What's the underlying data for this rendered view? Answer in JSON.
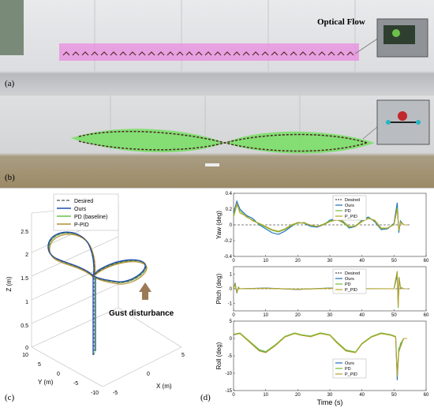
{
  "panels": {
    "a_label": "(a)",
    "b_label": "(b)",
    "c_label": "(c)",
    "d_label": "(d)",
    "optical_flow_label": "Optical Flow"
  },
  "colors": {
    "desired": "#555555",
    "ours": "#1f4eb4",
    "pd": "#6cc04a",
    "ppid": "#b58e35",
    "ours_d": "#1a6fbf",
    "pd_d": "#6dbd3b",
    "ppid_d": "#b8a12a",
    "magenta_band": "#e98be0",
    "green_band": "#6fe05a"
  },
  "plot3d": {
    "legend": [
      "Desired",
      "Ours",
      "PD (baseline)",
      "P-PID"
    ],
    "zlabel": "Z (m)",
    "ylabel": "Y (m)",
    "xlabel": "X (m)",
    "z_ticks": [
      "0",
      "0.5",
      "1",
      "1.5",
      "2",
      "2.5"
    ],
    "y_ticks": [
      "10",
      "5",
      "0",
      "-5",
      "-10"
    ],
    "x_ticks": [
      "5",
      "0",
      "-5"
    ],
    "gust_label": "Gust disturbance"
  },
  "chart_data": [
    {
      "type": "line",
      "ylabel": "Yaw (deg)",
      "xlim": [
        0,
        60
      ],
      "ylim": [
        -0.4,
        0.4
      ],
      "x_ticks": [
        "0",
        "10",
        "20",
        "30",
        "40",
        "50",
        "60"
      ],
      "y_ticks": [
        "0.4",
        "0.2",
        "0",
        "-0.2",
        "-0.4"
      ],
      "legend": [
        "Desired",
        "Ours",
        "PD",
        "P_PID"
      ],
      "series": [
        {
          "name": "Desired",
          "x": [
            0,
            55
          ],
          "y": [
            0,
            0
          ]
        },
        {
          "name": "Ours",
          "x": [
            0,
            1,
            2,
            4,
            6,
            8,
            10,
            12,
            14,
            16,
            18,
            20,
            22,
            24,
            26,
            28,
            30,
            32,
            34,
            36,
            38,
            40,
            42,
            44,
            46,
            48,
            50,
            51,
            51.5,
            52,
            53,
            54
          ],
          "y": [
            0.15,
            0.3,
            0.2,
            0.12,
            0.08,
            0.0,
            -0.05,
            -0.1,
            -0.12,
            -0.08,
            -0.02,
            0.03,
            0.02,
            -0.02,
            -0.03,
            0.0,
            0.06,
            0.08,
            0.04,
            -0.04,
            -0.02,
            0.06,
            0.1,
            0.04,
            -0.06,
            -0.05,
            0.02,
            0.28,
            -0.1,
            0.05,
            0.0,
            0.0
          ]
        },
        {
          "name": "PD",
          "x": [
            0,
            1,
            2,
            4,
            6,
            8,
            10,
            12,
            14,
            16,
            18,
            20,
            22,
            24,
            26,
            28,
            30,
            32,
            34,
            36,
            38,
            40,
            42,
            44,
            46,
            48,
            50,
            51,
            51.5,
            52,
            53,
            54
          ],
          "y": [
            0.1,
            0.25,
            0.18,
            0.1,
            0.06,
            0.01,
            -0.03,
            -0.07,
            -0.09,
            -0.06,
            -0.01,
            0.02,
            0.03,
            -0.01,
            -0.02,
            0.01,
            0.05,
            0.07,
            0.03,
            -0.03,
            -0.01,
            0.05,
            0.09,
            0.05,
            -0.05,
            -0.04,
            0.01,
            0.22,
            -0.08,
            0.04,
            0.0,
            0.0
          ]
        },
        {
          "name": "P_PID",
          "x": [
            0,
            1,
            2,
            4,
            6,
            8,
            10,
            12,
            14,
            16,
            18,
            20,
            22,
            24,
            26,
            28,
            30,
            32,
            34,
            36,
            38,
            40,
            42,
            44,
            46,
            48,
            50,
            51,
            51.5,
            52,
            53,
            54
          ],
          "y": [
            0.12,
            0.27,
            0.15,
            0.11,
            0.05,
            0.02,
            -0.02,
            -0.06,
            -0.08,
            -0.05,
            0.0,
            0.03,
            0.02,
            0.0,
            -0.02,
            0.0,
            0.04,
            0.06,
            0.05,
            -0.02,
            -0.02,
            0.04,
            0.08,
            0.06,
            -0.04,
            -0.04,
            0.0,
            0.2,
            -0.06,
            0.03,
            0.0,
            0.0
          ]
        }
      ]
    },
    {
      "type": "line",
      "ylabel": "Pitch (deg)",
      "xlim": [
        0,
        60
      ],
      "ylim": [
        -1.5,
        1.5
      ],
      "x_ticks": [
        "0",
        "10",
        "20",
        "30",
        "40",
        "50",
        "60"
      ],
      "y_ticks": [
        "1",
        "0",
        "-1"
      ],
      "legend": [
        "Desired",
        "Ours",
        "PD",
        "P_PID"
      ],
      "series": [
        {
          "name": "Desired",
          "x": [
            0,
            55
          ],
          "y": [
            0,
            0
          ]
        },
        {
          "name": "Ours",
          "x": [
            0,
            0.5,
            1,
            1.5,
            2,
            10,
            20,
            30,
            40,
            50,
            51,
            51.3,
            51.6,
            52,
            53,
            54
          ],
          "y": [
            0,
            0.4,
            -0.3,
            0.1,
            0,
            0.05,
            -0.05,
            0.05,
            0.0,
            0.0,
            0.9,
            -1.0,
            0.6,
            0.1,
            0.0,
            0.0
          ]
        },
        {
          "name": "PD",
          "x": [
            0,
            0.5,
            1,
            1.5,
            2,
            10,
            20,
            30,
            40,
            50,
            51,
            51.3,
            51.6,
            52,
            53,
            54
          ],
          "y": [
            0,
            0.3,
            -0.2,
            0.1,
            0,
            0.03,
            -0.03,
            0.04,
            0.01,
            0.0,
            1.2,
            -1.3,
            0.8,
            0.1,
            0.0,
            0.0
          ]
        },
        {
          "name": "P_PID",
          "x": [
            0,
            0.5,
            1,
            1.5,
            2,
            10,
            20,
            30,
            40,
            50,
            51,
            51.3,
            51.6,
            52,
            53,
            54
          ],
          "y": [
            0,
            0.35,
            -0.25,
            0.05,
            0,
            0.04,
            -0.04,
            0.03,
            0.0,
            0.0,
            1.1,
            -1.2,
            0.7,
            0.05,
            0.0,
            0.0
          ]
        }
      ]
    },
    {
      "type": "line",
      "ylabel": "Roll (deg)",
      "xlabel": "Time (s)",
      "xlim": [
        0,
        60
      ],
      "ylim": [
        -15,
        5
      ],
      "x_ticks": [
        "0",
        "10",
        "20",
        "30",
        "40",
        "50",
        "60"
      ],
      "y_ticks": [
        "5",
        "0",
        "-5",
        "-10",
        "-15"
      ],
      "legend": [
        "Ours",
        "PD",
        "P_PID"
      ],
      "series": [
        {
          "name": "Ours",
          "x": [
            0,
            2,
            5,
            8,
            10,
            13,
            16,
            19,
            21,
            24,
            27,
            30,
            32,
            35,
            38,
            40,
            43,
            46,
            49,
            50.5,
            51,
            51.5,
            52,
            53,
            54
          ],
          "y": [
            1,
            1.5,
            -1,
            -3.5,
            -4,
            -2,
            0.5,
            1.5,
            1,
            0.5,
            1.5,
            1,
            -1,
            -3.5,
            -4,
            -1.5,
            0.5,
            1.5,
            1,
            0.5,
            -12,
            -3,
            -2,
            0,
            0
          ]
        },
        {
          "name": "PD",
          "x": [
            0,
            2,
            5,
            8,
            10,
            13,
            16,
            19,
            21,
            24,
            27,
            30,
            32,
            35,
            38,
            40,
            43,
            46,
            49,
            50.5,
            51,
            51.5,
            52,
            53,
            54
          ],
          "y": [
            1.2,
            1.6,
            -0.8,
            -3.2,
            -3.8,
            -1.8,
            0.6,
            1.6,
            1.1,
            0.7,
            1.6,
            1.1,
            -0.8,
            -3.3,
            -3.9,
            -1.4,
            0.6,
            1.6,
            1.1,
            0.6,
            -10,
            -3.5,
            -1.5,
            0,
            0
          ]
        },
        {
          "name": "P_PID",
          "x": [
            0,
            2,
            5,
            8,
            10,
            13,
            16,
            19,
            21,
            24,
            27,
            30,
            32,
            35,
            38,
            40,
            43,
            46,
            49,
            50.5,
            51,
            51.5,
            52,
            53,
            54
          ],
          "y": [
            1.1,
            1.4,
            -1.1,
            -3.6,
            -4.1,
            -2.1,
            0.4,
            1.4,
            0.9,
            0.5,
            1.4,
            0.9,
            -1.1,
            -3.6,
            -4.1,
            -1.6,
            0.4,
            1.4,
            0.9,
            0.4,
            -11,
            -4,
            -2.5,
            0,
            0
          ]
        }
      ]
    }
  ]
}
